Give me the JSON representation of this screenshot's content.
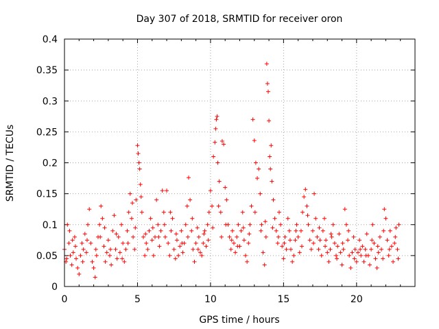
{
  "chart_data": {
    "type": "scatter",
    "title": "Day 307 of 2018, SRMTID for receiver oron",
    "xlabel": "GPS time / hours",
    "ylabel": "SRMTID / TECUs",
    "xlim": [
      0,
      24
    ],
    "ylim": [
      0,
      0.4
    ],
    "xticks": [
      0,
      5,
      10,
      15,
      20
    ],
    "yticks": [
      0,
      0.05,
      0.1,
      0.15,
      0.2,
      0.25,
      0.3,
      0.35,
      0.4
    ],
    "xtick_labels": [
      "0",
      "5",
      "10",
      "15",
      "20"
    ],
    "ytick_labels": [
      "0",
      "0.05",
      "0.1",
      "0.15",
      "0.2",
      "0.25",
      "0.3",
      "0.35",
      "0.4"
    ],
    "grid": true,
    "marker": "+",
    "marker_color": "#ff0000",
    "series": [
      {
        "name": "SRMTID",
        "points": [
          [
            0.0,
            0.06
          ],
          [
            0.1,
            0.04
          ],
          [
            0.2,
            0.1
          ],
          [
            0.3,
            0.07
          ],
          [
            0.4,
            0.05
          ],
          [
            0.5,
            0.035
          ],
          [
            0.6,
            0.055
          ],
          [
            0.7,
            0.08
          ],
          [
            0.8,
            0.045
          ],
          [
            0.9,
            0.03
          ],
          [
            1.0,
            0.02
          ],
          [
            1.1,
            0.05
          ],
          [
            1.2,
            0.07
          ],
          [
            1.3,
            0.06
          ],
          [
            1.4,
            0.085
          ],
          [
            1.5,
            0.055
          ],
          [
            1.6,
            0.1
          ],
          [
            1.7,
            0.125
          ],
          [
            1.8,
            0.07
          ],
          [
            1.9,
            0.04
          ],
          [
            2.0,
            0.03
          ],
          [
            2.1,
            0.015
          ],
          [
            2.2,
            0.05
          ],
          [
            2.3,
            0.08
          ],
          [
            2.4,
            0.1
          ],
          [
            2.5,
            0.13
          ],
          [
            2.6,
            0.11
          ],
          [
            2.7,
            0.065
          ],
          [
            2.8,
            0.04
          ],
          [
            2.9,
            0.055
          ],
          [
            3.0,
            0.075
          ],
          [
            3.1,
            0.05
          ],
          [
            3.2,
            0.035
          ],
          [
            3.3,
            0.09
          ],
          [
            3.4,
            0.115
          ],
          [
            3.5,
            0.06
          ],
          [
            3.6,
            0.045
          ],
          [
            3.7,
            0.08
          ],
          [
            3.8,
            0.055
          ],
          [
            3.9,
            0.1
          ],
          [
            4.0,
            0.07
          ],
          [
            4.1,
            0.04
          ],
          [
            4.2,
            0.06
          ],
          [
            4.3,
            0.09
          ],
          [
            4.4,
            0.12
          ],
          [
            4.5,
            0.15
          ],
          [
            4.6,
            0.11
          ],
          [
            4.7,
            0.08
          ],
          [
            4.8,
            0.06
          ],
          [
            4.9,
            0.14
          ],
          [
            5.0,
            0.228
          ],
          [
            5.05,
            0.215
          ],
          [
            5.1,
            0.2
          ],
          [
            5.15,
            0.19
          ],
          [
            5.2,
            0.165
          ],
          [
            5.3,
            0.12
          ],
          [
            5.4,
            0.08
          ],
          [
            5.5,
            0.05
          ],
          [
            5.6,
            0.07
          ],
          [
            5.7,
            0.06
          ],
          [
            5.8,
            0.09
          ],
          [
            5.9,
            0.11
          ],
          [
            6.0,
            0.075
          ],
          [
            6.1,
            0.05
          ],
          [
            6.2,
            0.08
          ],
          [
            6.3,
            0.14
          ],
          [
            6.4,
            0.1
          ],
          [
            6.5,
            0.065
          ],
          [
            6.6,
            0.09
          ],
          [
            6.7,
            0.155
          ],
          [
            6.8,
            0.12
          ],
          [
            6.9,
            0.08
          ],
          [
            7.0,
            0.155
          ],
          [
            7.1,
            0.07
          ],
          [
            7.2,
            0.05
          ],
          [
            7.3,
            0.09
          ],
          [
            7.4,
            0.11
          ],
          [
            7.5,
            0.06
          ],
          [
            7.6,
            0.045
          ],
          [
            7.7,
            0.075
          ],
          [
            7.8,
            0.05
          ],
          [
            7.9,
            0.065
          ],
          [
            8.0,
            0.09
          ],
          [
            8.1,
            0.055
          ],
          [
            8.2,
            0.07
          ],
          [
            8.3,
            0.1
          ],
          [
            8.4,
            0.13
          ],
          [
            8.5,
            0.176
          ],
          [
            8.6,
            0.14
          ],
          [
            8.7,
            0.09
          ],
          [
            8.8,
            0.06
          ],
          [
            8.9,
            0.04
          ],
          [
            9.0,
            0.07
          ],
          [
            9.1,
            0.095
          ],
          [
            9.2,
            0.08
          ],
          [
            9.3,
            0.055
          ],
          [
            9.4,
            0.05
          ],
          [
            9.5,
            0.07
          ],
          [
            9.6,
            0.09
          ],
          [
            9.7,
            0.065
          ],
          [
            9.8,
            0.1
          ],
          [
            9.9,
            0.12
          ],
          [
            10.0,
            0.155
          ],
          [
            10.1,
            0.13
          ],
          [
            10.2,
            0.21
          ],
          [
            10.3,
            0.233
          ],
          [
            10.35,
            0.255
          ],
          [
            10.4,
            0.27
          ],
          [
            10.45,
            0.275
          ],
          [
            10.5,
            0.2
          ],
          [
            10.6,
            0.17
          ],
          [
            10.7,
            0.12
          ],
          [
            10.8,
            0.235
          ],
          [
            10.9,
            0.23
          ],
          [
            11.0,
            0.16
          ],
          [
            11.1,
            0.14
          ],
          [
            11.2,
            0.1
          ],
          [
            11.3,
            0.08
          ],
          [
            11.4,
            0.06
          ],
          [
            11.5,
            0.09
          ],
          [
            11.6,
            0.07
          ],
          [
            11.7,
            0.055
          ],
          [
            11.8,
            0.08
          ],
          [
            11.9,
            0.1
          ],
          [
            12.0,
            0.065
          ],
          [
            12.1,
            0.09
          ],
          [
            12.2,
            0.12
          ],
          [
            12.3,
            0.075
          ],
          [
            12.4,
            0.05
          ],
          [
            12.5,
            0.04
          ],
          [
            12.6,
            0.07
          ],
          [
            12.7,
            0.1
          ],
          [
            12.8,
            0.13
          ],
          [
            12.9,
            0.27
          ],
          [
            13.0,
            0.236
          ],
          [
            13.1,
            0.2
          ],
          [
            13.2,
            0.175
          ],
          [
            13.3,
            0.19
          ],
          [
            13.4,
            0.15
          ],
          [
            13.5,
            0.1
          ],
          [
            13.6,
            0.055
          ],
          [
            13.7,
            0.035
          ],
          [
            13.8,
            0.08
          ],
          [
            13.85,
            0.36
          ],
          [
            13.9,
            0.328
          ],
          [
            13.95,
            0.315
          ],
          [
            14.0,
            0.268
          ],
          [
            14.05,
            0.21
          ],
          [
            14.1,
            0.19
          ],
          [
            14.15,
            0.228
          ],
          [
            14.2,
            0.17
          ],
          [
            14.3,
            0.14
          ],
          [
            14.4,
            0.11
          ],
          [
            14.5,
            0.09
          ],
          [
            14.6,
            0.07
          ],
          [
            14.7,
            0.12
          ],
          [
            14.8,
            0.1
          ],
          [
            14.9,
            0.065
          ],
          [
            15.0,
            0.045
          ],
          [
            15.1,
            0.08
          ],
          [
            15.2,
            0.06
          ],
          [
            15.3,
            0.11
          ],
          [
            15.4,
            0.09
          ],
          [
            15.5,
            0.06
          ],
          [
            15.6,
            0.04
          ],
          [
            15.7,
            0.05
          ],
          [
            15.8,
            0.075
          ],
          [
            15.9,
            0.1
          ],
          [
            16.0,
            0.08
          ],
          [
            16.1,
            0.055
          ],
          [
            16.2,
            0.09
          ],
          [
            16.3,
            0.12
          ],
          [
            16.4,
            0.145
          ],
          [
            16.5,
            0.157
          ],
          [
            16.6,
            0.13
          ],
          [
            16.7,
            0.1
          ],
          [
            16.8,
            0.075
          ],
          [
            16.9,
            0.06
          ],
          [
            17.0,
            0.09
          ],
          [
            17.1,
            0.15
          ],
          [
            17.2,
            0.11
          ],
          [
            17.3,
            0.08
          ],
          [
            17.4,
            0.06
          ],
          [
            17.5,
            0.075
          ],
          [
            17.6,
            0.05
          ],
          [
            17.7,
            0.09
          ],
          [
            17.8,
            0.11
          ],
          [
            17.9,
            0.075
          ],
          [
            18.0,
            0.055
          ],
          [
            18.1,
            0.04
          ],
          [
            18.2,
            0.06
          ],
          [
            18.3,
            0.08
          ],
          [
            18.4,
            0.1
          ],
          [
            18.5,
            0.07
          ],
          [
            18.6,
            0.05
          ],
          [
            18.7,
            0.065
          ],
          [
            18.8,
            0.085
          ],
          [
            18.9,
            0.055
          ],
          [
            19.0,
            0.035
          ],
          [
            19.1,
            0.06
          ],
          [
            19.2,
            0.125
          ],
          [
            19.3,
            0.1
          ],
          [
            19.4,
            0.075
          ],
          [
            19.5,
            0.05
          ],
          [
            19.6,
            0.03
          ],
          [
            19.7,
            0.055
          ],
          [
            19.8,
            0.08
          ],
          [
            19.9,
            0.06
          ],
          [
            20.0,
            0.04
          ],
          [
            20.1,
            0.055
          ],
          [
            20.2,
            0.075
          ],
          [
            20.3,
            0.05
          ],
          [
            20.4,
            0.065
          ],
          [
            20.5,
            0.04
          ],
          [
            20.6,
            0.06
          ],
          [
            20.7,
            0.085
          ],
          [
            20.8,
            0.05
          ],
          [
            20.9,
            0.035
          ],
          [
            21.0,
            0.06
          ],
          [
            21.1,
            0.1
          ],
          [
            21.2,
            0.07
          ],
          [
            21.3,
            0.045
          ],
          [
            21.4,
            0.03
          ],
          [
            21.5,
            0.055
          ],
          [
            21.6,
            0.08
          ],
          [
            21.7,
            0.06
          ],
          [
            21.8,
            0.045
          ],
          [
            21.9,
            0.125
          ],
          [
            22.0,
            0.11
          ],
          [
            22.1,
            0.075
          ],
          [
            22.2,
            0.05
          ],
          [
            22.3,
            0.09
          ],
          [
            22.4,
            0.065
          ],
          [
            22.5,
            0.04
          ],
          [
            22.6,
            0.07
          ],
          [
            22.7,
            0.095
          ],
          [
            22.8,
            0.06
          ],
          [
            22.9,
            0.1
          ],
          [
            0.15,
            0.045
          ],
          [
            0.35,
            0.09
          ],
          [
            0.75,
            0.065
          ],
          [
            1.25,
            0.04
          ],
          [
            1.55,
            0.075
          ],
          [
            2.15,
            0.06
          ],
          [
            2.45,
            0.08
          ],
          [
            2.75,
            0.095
          ],
          [
            3.15,
            0.06
          ],
          [
            3.55,
            0.085
          ],
          [
            3.95,
            0.045
          ],
          [
            4.35,
            0.07
          ],
          [
            4.65,
            0.135
          ],
          [
            4.85,
            0.095
          ],
          [
            5.25,
            0.145
          ],
          [
            5.55,
            0.085
          ],
          [
            6.05,
            0.095
          ],
          [
            6.45,
            0.08
          ],
          [
            6.85,
            0.1
          ],
          [
            7.25,
            0.12
          ],
          [
            7.65,
            0.085
          ],
          [
            8.05,
            0.07
          ],
          [
            8.45,
            0.08
          ],
          [
            8.75,
            0.11
          ],
          [
            9.15,
            0.06
          ],
          [
            9.55,
            0.085
          ],
          [
            9.85,
            0.075
          ],
          [
            10.15,
            0.095
          ],
          [
            10.55,
            0.13
          ],
          [
            10.75,
            0.08
          ],
          [
            11.05,
            0.1
          ],
          [
            11.45,
            0.075
          ],
          [
            11.85,
            0.065
          ],
          [
            12.25,
            0.095
          ],
          [
            12.65,
            0.085
          ],
          [
            13.05,
            0.12
          ],
          [
            13.45,
            0.09
          ],
          [
            13.75,
            0.105
          ],
          [
            14.25,
            0.095
          ],
          [
            14.65,
            0.08
          ],
          [
            15.05,
            0.07
          ],
          [
            15.45,
            0.075
          ],
          [
            15.85,
            0.09
          ],
          [
            16.25,
            0.065
          ],
          [
            16.65,
            0.115
          ],
          [
            17.05,
            0.07
          ],
          [
            17.45,
            0.095
          ],
          [
            17.85,
            0.065
          ],
          [
            18.25,
            0.085
          ],
          [
            18.65,
            0.045
          ],
          [
            19.05,
            0.07
          ],
          [
            19.45,
            0.09
          ],
          [
            19.85,
            0.045
          ],
          [
            20.25,
            0.06
          ],
          [
            20.65,
            0.05
          ],
          [
            21.05,
            0.075
          ],
          [
            21.45,
            0.065
          ],
          [
            21.85,
            0.09
          ],
          [
            22.25,
            0.06
          ],
          [
            22.65,
            0.08
          ],
          [
            22.85,
            0.045
          ],
          [
            0.55,
            0.075
          ]
        ]
      }
    ]
  }
}
